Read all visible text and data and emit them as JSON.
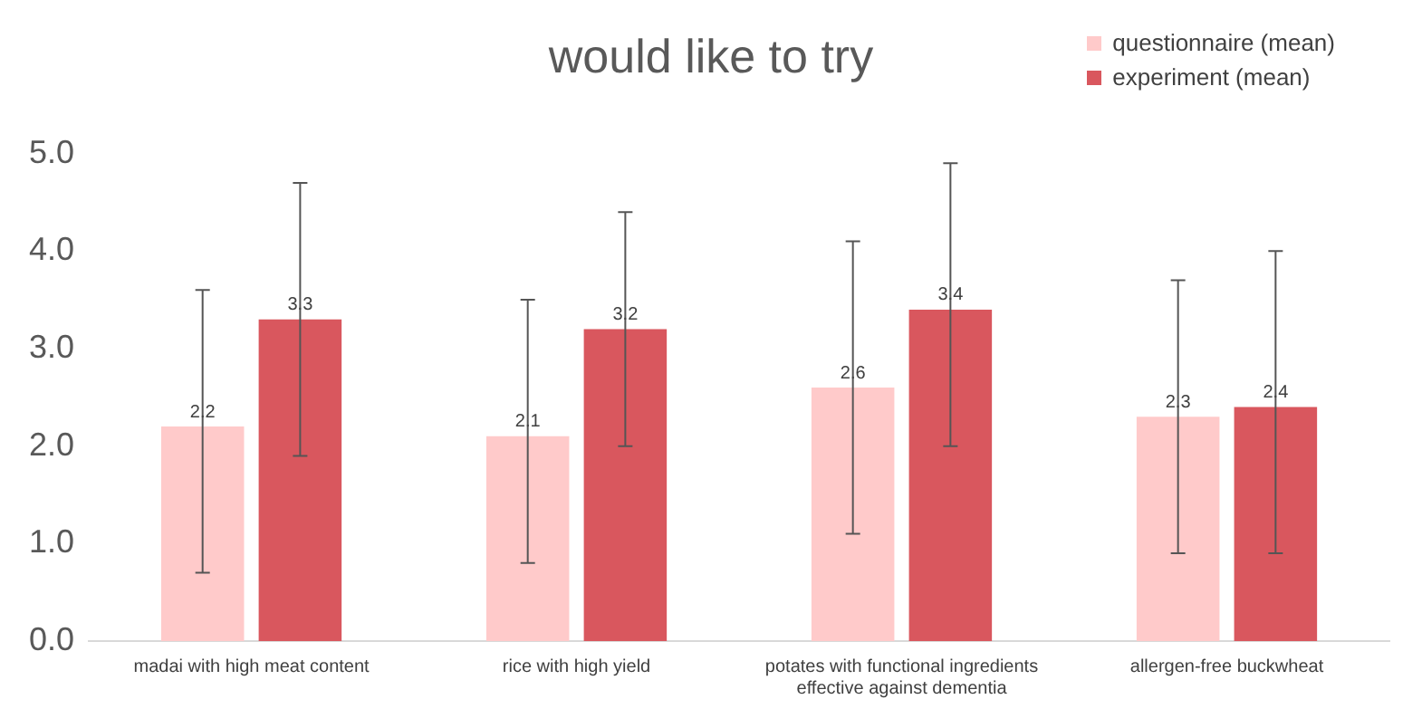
{
  "chart_data": {
    "type": "bar",
    "title": "would like to try",
    "categories": [
      "madai with high meat content",
      "rice with high yield",
      "potates with functional ingredients effective against dementia",
      "allergen-free buckwheat"
    ],
    "series": [
      {
        "name": "questionnaire (mean)",
        "color": "#ffcaca",
        "values": [
          2.2,
          2.1,
          2.6,
          2.3
        ],
        "errors": [
          [
            0.7,
            3.6
          ],
          [
            0.8,
            3.5
          ],
          [
            1.1,
            4.1
          ],
          [
            0.9,
            3.7
          ]
        ]
      },
      {
        "name": "experiment (mean)",
        "color": "#d9575e",
        "values": [
          3.3,
          3.2,
          3.4,
          2.4
        ],
        "errors": [
          [
            1.9,
            4.7
          ],
          [
            2.0,
            4.4
          ],
          [
            2.0,
            4.9
          ],
          [
            0.9,
            4.0
          ]
        ]
      }
    ],
    "ylim": [
      0,
      5
    ],
    "yticks": [
      {
        "value": 0,
        "label": "0.0"
      },
      {
        "value": 1,
        "label": "1.0"
      },
      {
        "value": 2,
        "label": "2.0"
      },
      {
        "value": 3,
        "label": "3.0"
      },
      {
        "value": 4,
        "label": "4.0"
      },
      {
        "value": 5,
        "label": "5.0"
      }
    ],
    "data_labels": true,
    "legend": "top right",
    "grid": false
  }
}
